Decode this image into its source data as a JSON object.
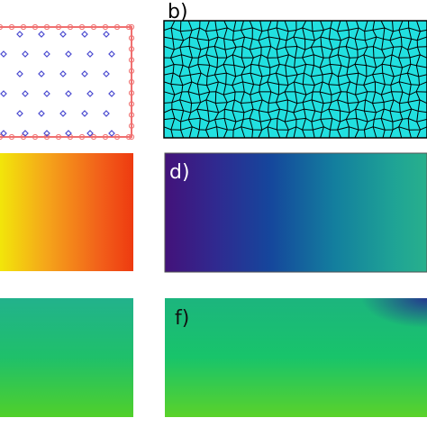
{
  "panels": [
    {
      "label": "b)"
    },
    {
      "label": "d)"
    },
    {
      "label": "f)"
    }
  ]
}
